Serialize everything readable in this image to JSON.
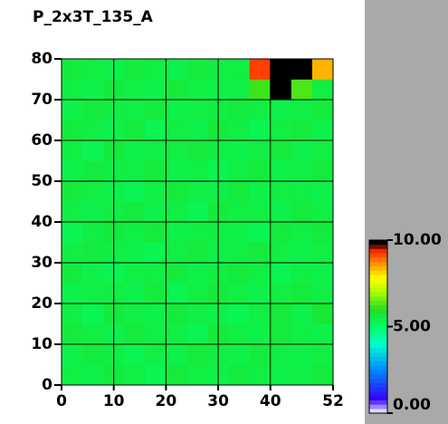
{
  "chart_data": {
    "type": "heatmap",
    "title": "P_2x3T_135_A",
    "xbins": [
      0,
      4,
      8,
      12,
      16,
      20,
      24,
      28,
      32,
      36,
      40,
      44,
      48,
      52
    ],
    "ybins": [
      0,
      5,
      10,
      15,
      20,
      25,
      30,
      35,
      40,
      45,
      50,
      55,
      60,
      65,
      70,
      75,
      80
    ],
    "z": [
      [
        5.5,
        5.4,
        5.6,
        5.5,
        5.3,
        5.6,
        5.5,
        5.4,
        5.6,
        5.5,
        5.4,
        5.5,
        5.6
      ],
      [
        5.4,
        5.6,
        5.5,
        5.3,
        5.5,
        5.4,
        5.6,
        5.5,
        5.4,
        5.6,
        5.5,
        5.4,
        5.5
      ],
      [
        5.6,
        5.5,
        5.4,
        5.6,
        5.5,
        5.5,
        5.3,
        5.6,
        5.5,
        5.4,
        5.6,
        5.5,
        5.4
      ],
      [
        5.5,
        5.3,
        5.6,
        5.5,
        5.4,
        5.6,
        5.5,
        5.4,
        5.3,
        5.5,
        5.6,
        5.4,
        5.7
      ],
      [
        5.4,
        5.5,
        5.5,
        5.4,
        5.6,
        5.3,
        5.5,
        5.6,
        5.5,
        5.4,
        5.5,
        5.6,
        5.5
      ],
      [
        5.6,
        5.4,
        5.3,
        5.5,
        5.5,
        5.6,
        5.4,
        5.5,
        5.6,
        5.5,
        5.3,
        5.5,
        5.4
      ],
      [
        5.5,
        5.6,
        5.5,
        5.4,
        5.3,
        5.5,
        5.6,
        5.4,
        5.5,
        5.6,
        5.5,
        5.4,
        5.5
      ],
      [
        5.3,
        5.5,
        5.6,
        5.5,
        5.6,
        5.4,
        5.5,
        5.5,
        5.4,
        5.3,
        5.6,
        5.5,
        5.6
      ],
      [
        5.5,
        5.4,
        5.5,
        5.6,
        5.4,
        5.5,
        5.3,
        5.6,
        5.5,
        5.5,
        5.4,
        5.6,
        5.5
      ],
      [
        5.6,
        5.5,
        5.4,
        5.3,
        5.5,
        5.6,
        5.5,
        5.4,
        5.6,
        5.4,
        5.5,
        5.5,
        5.4
      ],
      [
        5.4,
        5.6,
        5.5,
        5.5,
        5.6,
        5.4,
        5.5,
        5.3,
        5.5,
        5.6,
        5.4,
        5.5,
        5.6
      ],
      [
        5.5,
        5.3,
        5.6,
        5.4,
        5.5,
        5.5,
        5.6,
        5.5,
        5.4,
        5.5,
        5.6,
        5.4,
        5.5
      ],
      [
        5.6,
        5.5,
        5.4,
        5.6,
        5.3,
        5.5,
        5.4,
        5.6,
        5.5,
        5.3,
        5.5,
        5.6,
        5.4
      ],
      [
        5.4,
        5.6,
        5.5,
        5.5,
        5.6,
        5.4,
        5.5,
        5.5,
        5.6,
        5.5,
        5.4,
        5.5,
        5.6
      ],
      [
        5.5,
        5.4,
        5.6,
        5.5,
        5.4,
        5.6,
        5.5,
        5.4,
        5.5,
        6.2,
        10,
        6.3,
        5.5
      ],
      [
        5.6,
        5.5,
        5.4,
        5.6,
        5.5,
        5.4,
        5.6,
        5.5,
        5.5,
        9.2,
        10,
        10,
        8.4
      ]
    ],
    "zlim": [
      0,
      10
    ],
    "colorscale": [
      [
        0,
        "#ffffff"
      ],
      [
        0.8,
        "#3300ff"
      ],
      [
        2.5,
        "#0088ff"
      ],
      [
        4,
        "#00ffcc"
      ],
      [
        5,
        "#00ff66"
      ],
      [
        6,
        "#22dd22"
      ],
      [
        7,
        "#aaff00"
      ],
      [
        7.8,
        "#ffff00"
      ],
      [
        8.6,
        "#ff9900"
      ],
      [
        9.4,
        "#ff2200"
      ],
      [
        9.8,
        "#000000"
      ],
      [
        10,
        "#000000"
      ]
    ],
    "zticks": [
      {
        "value": 0,
        "label": "0.00"
      },
      {
        "value": 5,
        "label": "5.00"
      },
      {
        "value": 10,
        "label": "10.00"
      }
    ],
    "xlim": [
      0,
      52
    ],
    "ylim": [
      0,
      80
    ],
    "xticks": [
      0,
      10,
      20,
      30,
      40,
      52
    ],
    "yticks": [
      0,
      10,
      20,
      30,
      40,
      50,
      60,
      70,
      80
    ],
    "grid": true
  }
}
